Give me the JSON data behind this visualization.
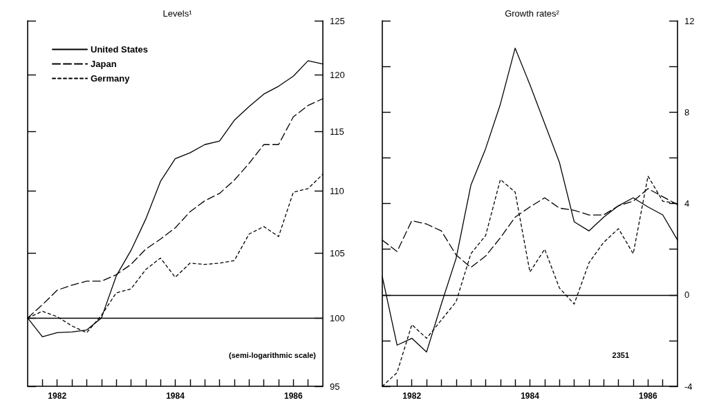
{
  "chart_data": [
    {
      "type": "line",
      "title": "Levels¹",
      "x": [
        1982,
        1982.25,
        1982.5,
        1982.75,
        1983,
        1983.25,
        1983.5,
        1983.75,
        1984,
        1984.25,
        1984.5,
        1984.75,
        1985,
        1985.25,
        1985.5,
        1985.75,
        1986,
        1986.25,
        1986.5,
        1986.75,
        1987
      ],
      "series": [
        {
          "name": "United States",
          "color": "#000000",
          "line_style": "solid",
          "values": [
            100,
            98.6,
            98.9,
            98.95,
            99.1,
            100,
            103.2,
            105.2,
            107.7,
            110.8,
            112.7,
            113.2,
            113.9,
            114.2,
            116.0,
            117.2,
            118.3,
            119.0,
            119.9,
            121.3,
            121.0
          ]
        },
        {
          "name": "Japan",
          "color": "#000000",
          "line_style": "dashed",
          "values": [
            100,
            101.0,
            102.1,
            102.5,
            102.8,
            102.8,
            103.3,
            104.1,
            105.3,
            106.1,
            107.0,
            108.3,
            109.2,
            109.8,
            110.9,
            112.3,
            113.9,
            113.9,
            116.3,
            117.3,
            117.9
          ]
        },
        {
          "name": "Germany",
          "color": "#000000",
          "line_style": "dotted",
          "values": [
            100,
            100.5,
            100.1,
            99.4,
            98.9,
            100.2,
            101.9,
            102.2,
            103.7,
            104.6,
            103.1,
            104.2,
            104.1,
            104.2,
            104.4,
            106.5,
            107.1,
            106.3,
            109.9,
            110.2,
            111.4
          ]
        }
      ],
      "xlim": [
        1982,
        1987
      ],
      "xticks": [
        {
          "value": 1982.25,
          "label": null
        },
        {
          "value": 1982.5,
          "label": "1982"
        },
        {
          "value": 1982.75,
          "label": null
        },
        {
          "value": 1983,
          "label": null
        },
        {
          "value": 1983.25,
          "label": null
        },
        {
          "value": 1983.5,
          "label": null
        },
        {
          "value": 1983.75,
          "label": null
        },
        {
          "value": 1984,
          "label": null
        },
        {
          "value": 1984.25,
          "label": null
        },
        {
          "value": 1984.5,
          "label": "1984"
        },
        {
          "value": 1984.75,
          "label": null
        },
        {
          "value": 1985,
          "label": null
        },
        {
          "value": 1985.25,
          "label": null
        },
        {
          "value": 1985.5,
          "label": null
        },
        {
          "value": 1985.75,
          "label": null
        },
        {
          "value": 1986,
          "label": null
        },
        {
          "value": 1986.25,
          "label": null
        },
        {
          "value": 1986.5,
          "label": "1986"
        },
        {
          "value": 1986.75,
          "label": null
        }
      ],
      "ylim": [
        95,
        125
      ],
      "yticks": [
        95,
        100,
        105,
        110,
        115,
        120,
        125
      ],
      "log": "y",
      "grid": false,
      "legend": "top left",
      "marker": "none",
      "ref_lines": [
        {
          "axis": "y",
          "value": 100
        }
      ],
      "annotations": [
        "(semi-logarithmic scale)"
      ]
    },
    {
      "type": "line",
      "title": "Growth rates²",
      "x": [
        1982,
        1982.25,
        1982.5,
        1982.75,
        1983,
        1983.25,
        1983.5,
        1983.75,
        1984,
        1984.25,
        1984.5,
        1984.75,
        1985,
        1985.25,
        1985.5,
        1985.75,
        1986,
        1986.25,
        1986.5,
        1986.75,
        1987
      ],
      "series": [
        {
          "color": "#000000",
          "line_style": "solid",
          "values": [
            0.8,
            -2.2,
            -1.9,
            -2.5,
            -0.4,
            1.6,
            4.8,
            6.4,
            8.35,
            10.8,
            9.2,
            7.5,
            5.8,
            3.2,
            2.8,
            3.4,
            3.9,
            4.25,
            3.85,
            3.5,
            2.4
          ]
        },
        {
          "color": "#000000",
          "line_style": "dashed",
          "values": [
            2.4,
            1.9,
            3.25,
            3.1,
            2.8,
            1.75,
            1.2,
            1.7,
            2.5,
            3.4,
            3.85,
            4.25,
            3.8,
            3.7,
            3.5,
            3.5,
            3.9,
            4.1,
            4.65,
            4.3,
            3.95
          ]
        },
        {
          "color": "#000000",
          "line_style": "dotted",
          "values": [
            -4.0,
            -3.4,
            -1.3,
            -1.9,
            -1.1,
            -0.3,
            1.8,
            2.6,
            5.05,
            4.5,
            1.0,
            2.0,
            0.3,
            -0.4,
            1.4,
            2.3,
            2.9,
            1.8,
            5.2,
            4.1,
            4.0
          ]
        }
      ],
      "xlim": [
        1982,
        1987
      ],
      "xticks": [
        {
          "value": 1982.25,
          "label": null
        },
        {
          "value": 1982.5,
          "label": "1982"
        },
        {
          "value": 1982.75,
          "label": null
        },
        {
          "value": 1983,
          "label": null
        },
        {
          "value": 1983.25,
          "label": null
        },
        {
          "value": 1983.5,
          "label": null
        },
        {
          "value": 1983.75,
          "label": null
        },
        {
          "value": 1984,
          "label": null
        },
        {
          "value": 1984.25,
          "label": null
        },
        {
          "value": 1984.5,
          "label": "1984"
        },
        {
          "value": 1984.75,
          "label": null
        },
        {
          "value": 1985,
          "label": null
        },
        {
          "value": 1985.25,
          "label": null
        },
        {
          "value": 1985.5,
          "label": null
        },
        {
          "value": 1985.75,
          "label": null
        },
        {
          "value": 1986,
          "label": null
        },
        {
          "value": 1986.25,
          "label": null
        },
        {
          "value": 1986.5,
          "label": "1986"
        },
        {
          "value": 1986.75,
          "label": null
        }
      ],
      "ylim": [
        -4,
        12
      ],
      "yticks": [
        -4,
        {
          "value": -2,
          "label": null
        },
        0,
        {
          "value": 2,
          "label": null
        },
        4,
        {
          "value": 6,
          "label": null
        },
        8,
        {
          "value": 10,
          "label": null
        },
        12
      ],
      "grid": false,
      "legend": false,
      "marker": "none",
      "ref_lines": [
        {
          "axis": "y",
          "value": 0
        }
      ],
      "annotations": [
        "2351"
      ]
    }
  ]
}
